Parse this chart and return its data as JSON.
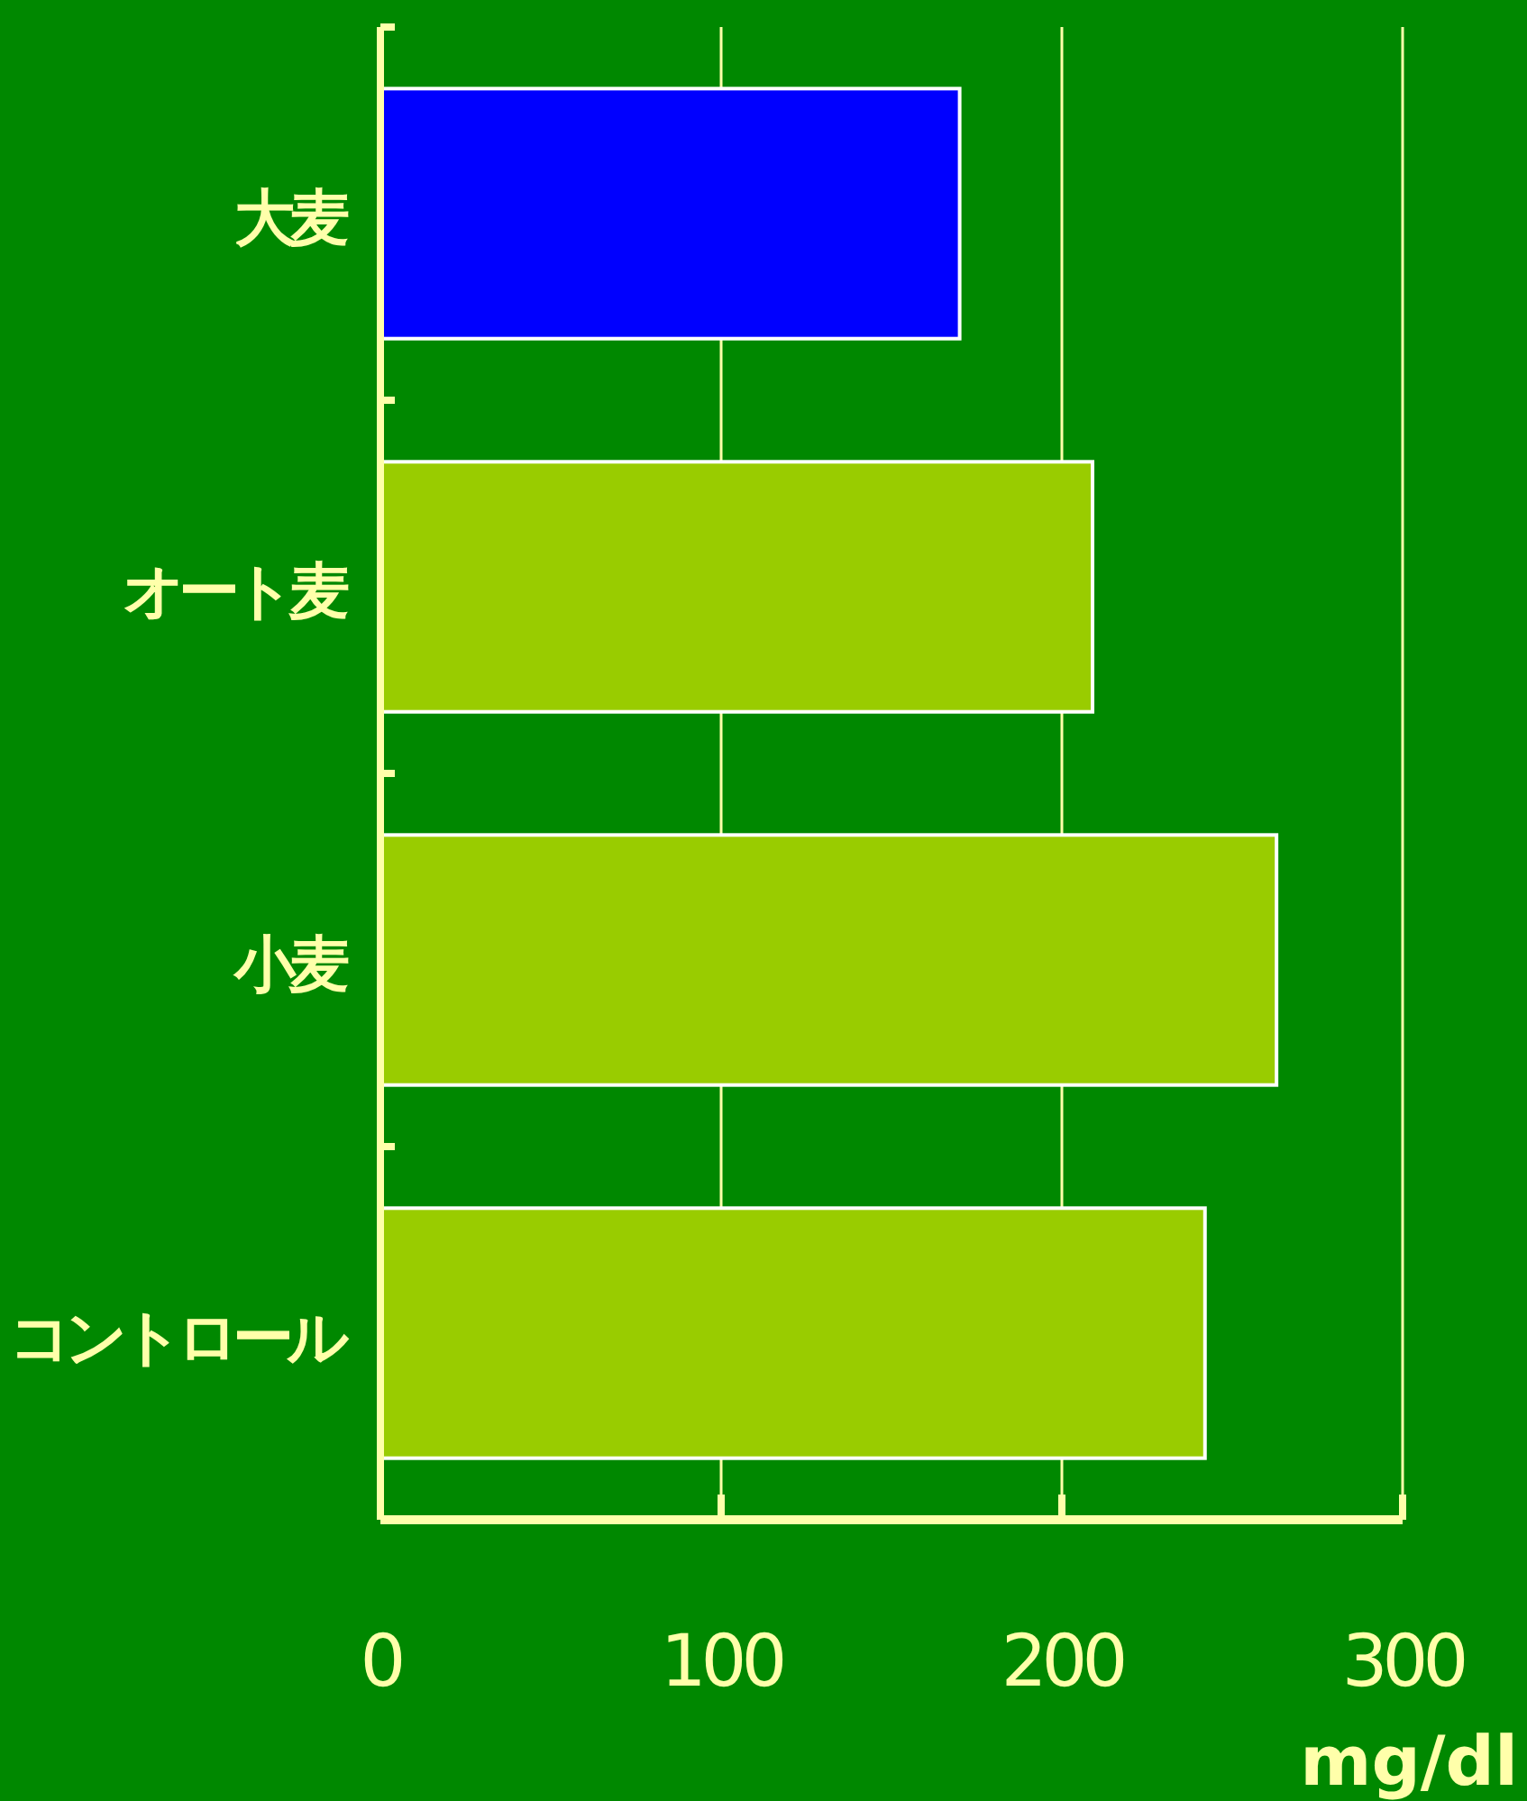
{
  "chart_data": {
    "type": "bar",
    "orientation": "horizontal",
    "xlabel": "mg/dl",
    "categories": [
      "大麦",
      "オート麦",
      "小麦",
      "コントロール"
    ],
    "values": [
      170,
      209,
      263,
      242
    ],
    "colors": [
      "#0000ff",
      "#99cc00",
      "#99cc00",
      "#99cc00"
    ],
    "xlim": [
      0,
      300
    ],
    "xticks": [
      0,
      100,
      200,
      300
    ],
    "grid": "x"
  }
}
